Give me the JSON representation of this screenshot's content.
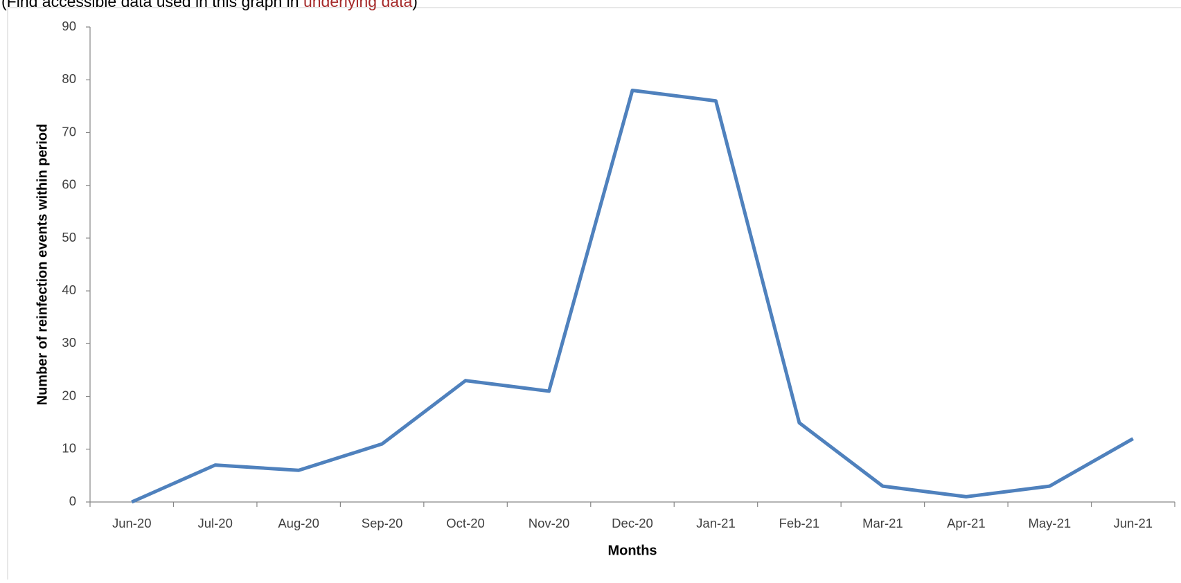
{
  "note": {
    "prefix": "(Find accessible data used in this graph in",
    "link": "underlying data",
    "suffix": ")"
  },
  "chart_data": {
    "type": "line",
    "categories": [
      "Jun-20",
      "Jul-20",
      "Aug-20",
      "Sep-20",
      "Oct-20",
      "Nov-20",
      "Dec-20",
      "Jan-21",
      "Feb-21",
      "Mar-21",
      "Apr-21",
      "May-21",
      "Jun-21"
    ],
    "values": [
      0,
      7,
      6,
      11,
      23,
      21,
      78,
      76,
      15,
      3,
      1,
      3,
      12
    ],
    "color": "#4f81bd",
    "ylim": [
      0,
      90
    ],
    "yticks": [
      0,
      10,
      20,
      30,
      40,
      50,
      60,
      70,
      80,
      90
    ],
    "x_label": "Months",
    "y_label": "Number of reinfection events within period",
    "grid": false
  }
}
